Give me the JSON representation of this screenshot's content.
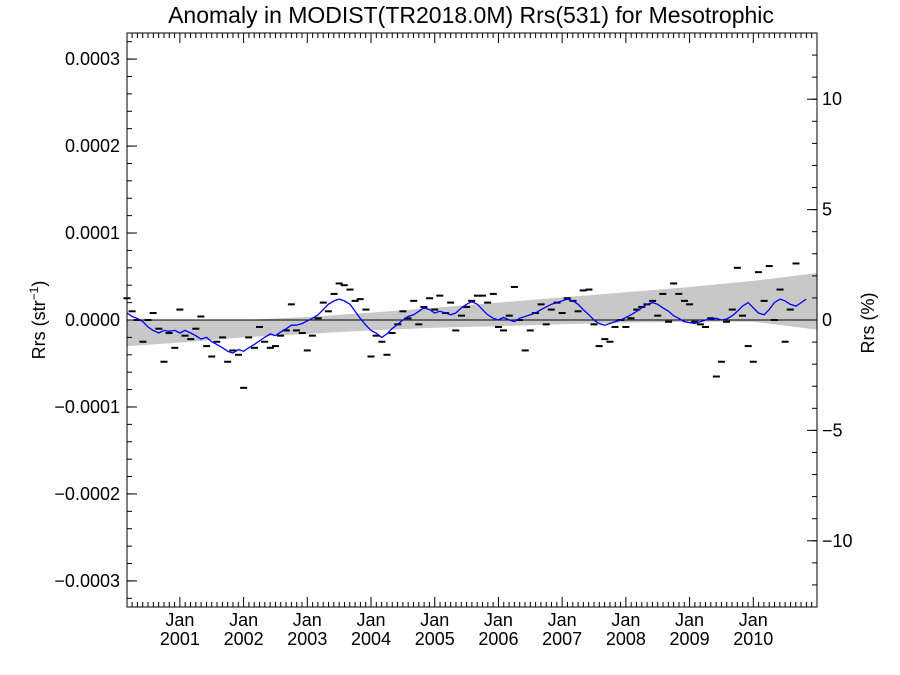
{
  "chart_data": {
    "type": "line",
    "title": "Anomaly in MODIST(TR2018.0M) Rrs(531) for Mesotrophic",
    "ylabel_left": {
      "text": "Rrs (str",
      "superscript": "−1",
      "suffix": ")"
    },
    "ylabel_right": "Rrs (%)",
    "xlim": [
      2000.17,
      2011.0
    ],
    "ylim_left": [
      -0.00033,
      0.00033
    ],
    "ylim_right": [
      -13.0,
      13.0
    ],
    "left_ticks": [
      {
        "value": 0.0003,
        "label": "0.0003"
      },
      {
        "value": 0.0002,
        "label": "0.0002"
      },
      {
        "value": 0.0001,
        "label": "0.0001"
      },
      {
        "value": 0.0,
        "label": "0.0000"
      },
      {
        "value": -0.0001,
        "label": "−0.0001"
      },
      {
        "value": -0.0002,
        "label": "−0.0002"
      },
      {
        "value": -0.0003,
        "label": "−0.0003"
      }
    ],
    "right_ticks": [
      {
        "value": 10,
        "label": "10"
      },
      {
        "value": 5,
        "label": "5"
      },
      {
        "value": 0,
        "label": "0"
      },
      {
        "value": -5,
        "label": "−5"
      },
      {
        "value": -10,
        "label": "−10"
      }
    ],
    "x_ticks": [
      {
        "value": 2001.0,
        "line1": "Jan",
        "line2": "2001"
      },
      {
        "value": 2002.0,
        "line1": "Jan",
        "line2": "2002"
      },
      {
        "value": 2003.0,
        "line1": "Jan",
        "line2": "2003"
      },
      {
        "value": 2004.0,
        "line1": "Jan",
        "line2": "2004"
      },
      {
        "value": 2005.0,
        "line1": "Jan",
        "line2": "2005"
      },
      {
        "value": 2006.0,
        "line1": "Jan",
        "line2": "2006"
      },
      {
        "value": 2007.0,
        "line1": "Jan",
        "line2": "2007"
      },
      {
        "value": 2008.0,
        "line1": "Jan",
        "line2": "2008"
      },
      {
        "value": 2009.0,
        "line1": "Jan",
        "line2": "2009"
      },
      {
        "value": 2010.0,
        "line1": "Jan",
        "line2": "2010"
      }
    ],
    "zero_line": 0.0,
    "confidence_band": {
      "x": [
        2000.17,
        2001.0,
        2002.0,
        2003.0,
        2004.0,
        2005.0,
        2006.0,
        2007.0,
        2008.0,
        2009.0,
        2010.0,
        2011.0
      ],
      "upper": [
        0.0,
        0.0,
        0.0,
        3.5e-06,
        8.5e-06,
        1.4e-05,
        2e-05,
        2.6e-05,
        3.2e-05,
        3.8e-05,
        4.5e-05,
        5.4e-05
      ],
      "lower": [
        -3e-05,
        -2.6e-05,
        -2e-05,
        -1.6e-05,
        -1.2e-05,
        -9e-06,
        -7e-06,
        -5e-06,
        -3e-06,
        -2e-06,
        -2e-06,
        -1.1e-05
      ]
    },
    "series": [
      {
        "values_role": "monthly anomaly markers",
        "color": "#000000",
        "points": [
          [
            2000.17,
            2.5e-05
          ],
          [
            2000.25,
            1e-05
          ],
          [
            2000.33,
            0.0
          ],
          [
            2000.42,
            -2.5e-05
          ],
          [
            2000.5,
            0.0
          ],
          [
            2000.58,
            8e-06
          ],
          [
            2000.67,
            -1e-05
          ],
          [
            2000.75,
            -4.8e-05
          ],
          [
            2000.83,
            -1.5e-05
          ],
          [
            2000.92,
            -3.2e-05
          ],
          [
            2001.0,
            1.2e-05
          ],
          [
            2001.08,
            -1.8e-05
          ],
          [
            2001.17,
            -2.2e-05
          ],
          [
            2001.25,
            -1e-05
          ],
          [
            2001.33,
            4e-06
          ],
          [
            2001.42,
            -3e-05
          ],
          [
            2001.5,
            -4.2e-05
          ],
          [
            2001.58,
            -2.5e-05
          ],
          [
            2001.67,
            -2e-05
          ],
          [
            2001.75,
            -4.8e-05
          ],
          [
            2001.83,
            -3.5e-05
          ],
          [
            2001.92,
            -4e-05
          ],
          [
            2002.0,
            -7.8e-05
          ],
          [
            2002.08,
            -2e-05
          ],
          [
            2002.17,
            -3.2e-05
          ],
          [
            2002.25,
            -8e-06
          ],
          [
            2002.33,
            -2.5e-05
          ],
          [
            2002.42,
            -3.2e-05
          ],
          [
            2002.5,
            -3e-05
          ],
          [
            2002.58,
            -1.8e-05
          ],
          [
            2002.67,
            -1.2e-05
          ],
          [
            2002.75,
            1.8e-05
          ],
          [
            2002.83,
            -1.2e-05
          ],
          [
            2002.92,
            -1.5e-05
          ],
          [
            2003.0,
            -3.5e-05
          ],
          [
            2003.08,
            -1.8e-05
          ],
          [
            2003.17,
            2e-06
          ],
          [
            2003.25,
            2e-05
          ],
          [
            2003.33,
            1e-05
          ],
          [
            2003.42,
            3e-05
          ],
          [
            2003.5,
            4.2e-05
          ],
          [
            2003.58,
            4e-05
          ],
          [
            2003.67,
            3.5e-05
          ],
          [
            2003.75,
            2.2e-05
          ],
          [
            2003.83,
            2.4e-05
          ],
          [
            2003.92,
            1.2e-05
          ],
          [
            2004.0,
            -4.2e-05
          ],
          [
            2004.08,
            -1.8e-05
          ],
          [
            2004.17,
            -2.5e-05
          ],
          [
            2004.25,
            -4e-05
          ],
          [
            2004.33,
            -1.5e-05
          ],
          [
            2004.42,
            -5e-06
          ],
          [
            2004.5,
            1e-05
          ],
          [
            2004.58,
            2e-06
          ],
          [
            2004.67,
            2.2e-05
          ],
          [
            2004.75,
            -5e-06
          ],
          [
            2004.83,
            1.5e-05
          ],
          [
            2004.92,
            2.5e-05
          ],
          [
            2005.0,
            1.2e-05
          ],
          [
            2005.08,
            2.8e-05
          ],
          [
            2005.17,
            8e-06
          ],
          [
            2005.25,
            2e-05
          ],
          [
            2005.33,
            -1.2e-05
          ],
          [
            2005.42,
            5e-06
          ],
          [
            2005.5,
            1.5e-05
          ],
          [
            2005.58,
            2.2e-05
          ],
          [
            2005.67,
            2.8e-05
          ],
          [
            2005.75,
            2.8e-05
          ],
          [
            2005.83,
            2e-05
          ],
          [
            2005.92,
            3e-05
          ],
          [
            2006.0,
            -8e-06
          ],
          [
            2006.08,
            -1.2e-05
          ],
          [
            2006.17,
            5e-06
          ],
          [
            2006.25,
            3.8e-05
          ],
          [
            2006.33,
            0.0
          ],
          [
            2006.42,
            -3.5e-05
          ],
          [
            2006.5,
            -1.2e-05
          ],
          [
            2006.58,
            8e-06
          ],
          [
            2006.67,
            1.8e-05
          ],
          [
            2006.75,
            -5e-06
          ],
          [
            2006.83,
            1.2e-05
          ],
          [
            2006.92,
            2e-05
          ],
          [
            2007.0,
            8e-06
          ],
          [
            2007.08,
            2.5e-05
          ],
          [
            2007.17,
            2.2e-05
          ],
          [
            2007.25,
            1e-05
          ],
          [
            2007.33,
            3.4e-05
          ],
          [
            2007.42,
            3.5e-05
          ],
          [
            2007.5,
            -5e-06
          ],
          [
            2007.58,
            -3e-05
          ],
          [
            2007.67,
            -2.2e-05
          ],
          [
            2007.75,
            -2.5e-05
          ],
          [
            2007.83,
            -8e-06
          ],
          [
            2007.92,
            0.0
          ],
          [
            2008.0,
            -8e-06
          ],
          [
            2008.08,
            2e-06
          ],
          [
            2008.17,
            1.2e-05
          ],
          [
            2008.25,
            1.5e-05
          ],
          [
            2008.33,
            1.8e-05
          ],
          [
            2008.42,
            2.2e-05
          ],
          [
            2008.5,
            5e-06
          ],
          [
            2008.58,
            3e-05
          ],
          [
            2008.67,
            -2e-06
          ],
          [
            2008.75,
            4.2e-05
          ],
          [
            2008.83,
            3e-05
          ],
          [
            2008.92,
            2.2e-05
          ],
          [
            2009.0,
            1.8e-05
          ],
          [
            2009.08,
            -2e-06
          ],
          [
            2009.17,
            -5e-06
          ],
          [
            2009.25,
            -8e-06
          ],
          [
            2009.33,
            2e-06
          ],
          [
            2009.42,
            -6.5e-05
          ],
          [
            2009.5,
            -4.8e-05
          ],
          [
            2009.58,
            -2e-06
          ],
          [
            2009.67,
            1.2e-05
          ],
          [
            2009.75,
            6e-05
          ],
          [
            2009.83,
            5e-06
          ],
          [
            2009.92,
            -3e-05
          ],
          [
            2010.0,
            -4.8e-05
          ],
          [
            2010.08,
            5.5e-05
          ],
          [
            2010.17,
            2.2e-05
          ],
          [
            2010.25,
            6.2e-05
          ],
          [
            2010.33,
            0.0
          ],
          [
            2010.42,
            3.5e-05
          ],
          [
            2010.5,
            -2.5e-05
          ],
          [
            2010.58,
            1.2e-05
          ],
          [
            2010.67,
            6.5e-05
          ]
        ]
      },
      {
        "values_role": "running mean",
        "color": "#0000ff",
        "points": [
          [
            2000.17,
            8e-06
          ],
          [
            2000.25,
            4e-06
          ],
          [
            2000.33,
            2e-06
          ],
          [
            2000.42,
            -2e-06
          ],
          [
            2000.5,
            -8e-06
          ],
          [
            2000.58,
            -1.2e-05
          ],
          [
            2000.67,
            -1.5e-05
          ],
          [
            2000.75,
            -1.2e-05
          ],
          [
            2000.83,
            -1.3e-05
          ],
          [
            2000.92,
            -1.2e-05
          ],
          [
            2001.0,
            -1.5e-05
          ],
          [
            2001.08,
            -1.2e-05
          ],
          [
            2001.17,
            -1.5e-05
          ],
          [
            2001.25,
            -1.8e-05
          ],
          [
            2001.33,
            -2.2e-05
          ],
          [
            2001.42,
            -2e-05
          ],
          [
            2001.5,
            -2.5e-05
          ],
          [
            2001.58,
            -2.8e-05
          ],
          [
            2001.67,
            -3.2e-05
          ],
          [
            2001.75,
            -3.6e-05
          ],
          [
            2001.83,
            -3.8e-05
          ],
          [
            2001.92,
            -3.4e-05
          ],
          [
            2002.0,
            -3.6e-05
          ],
          [
            2002.08,
            -3.2e-05
          ],
          [
            2002.17,
            -2.8e-05
          ],
          [
            2002.25,
            -2.4e-05
          ],
          [
            2002.33,
            -2e-05
          ],
          [
            2002.42,
            -1.6e-05
          ],
          [
            2002.5,
            -1.8e-05
          ],
          [
            2002.58,
            -1.4e-05
          ],
          [
            2002.67,
            -1e-05
          ],
          [
            2002.75,
            -6e-06
          ],
          [
            2002.83,
            -6e-06
          ],
          [
            2002.92,
            -4e-06
          ],
          [
            2003.0,
            -1e-06
          ],
          [
            2003.08,
            2e-06
          ],
          [
            2003.17,
            6e-06
          ],
          [
            2003.25,
            1.2e-05
          ],
          [
            2003.33,
            1.8e-05
          ],
          [
            2003.42,
            2.2e-05
          ],
          [
            2003.5,
            2.4e-05
          ],
          [
            2003.58,
            2.2e-05
          ],
          [
            2003.67,
            1.8e-05
          ],
          [
            2003.75,
            1e-05
          ],
          [
            2003.83,
            2e-06
          ],
          [
            2003.92,
            -6e-06
          ],
          [
            2004.0,
            -1.2e-05
          ],
          [
            2004.08,
            -1.5e-05
          ],
          [
            2004.17,
            -2e-05
          ],
          [
            2004.25,
            -1.6e-05
          ],
          [
            2004.33,
            -1e-05
          ],
          [
            2004.42,
            -5e-06
          ],
          [
            2004.5,
            0.0
          ],
          [
            2004.58,
            4e-06
          ],
          [
            2004.67,
            6e-06
          ],
          [
            2004.75,
            1e-05
          ],
          [
            2004.83,
            1.4e-05
          ],
          [
            2004.92,
            1.2e-05
          ],
          [
            2005.0,
            8e-06
          ],
          [
            2005.08,
            1e-05
          ],
          [
            2005.17,
            8e-06
          ],
          [
            2005.25,
            6e-06
          ],
          [
            2005.33,
            8e-06
          ],
          [
            2005.42,
            1.4e-05
          ],
          [
            2005.5,
            1.8e-05
          ],
          [
            2005.58,
            2.1e-05
          ],
          [
            2005.67,
            1.8e-05
          ],
          [
            2005.75,
            1.2e-05
          ],
          [
            2005.83,
            6e-06
          ],
          [
            2005.92,
            2e-06
          ],
          [
            2006.0,
            0.0
          ],
          [
            2006.08,
            3e-06
          ],
          [
            2006.17,
            0.0
          ],
          [
            2006.25,
            -2e-06
          ],
          [
            2006.33,
            2e-06
          ],
          [
            2006.42,
            4e-06
          ],
          [
            2006.5,
            6e-06
          ],
          [
            2006.58,
            8e-06
          ],
          [
            2006.67,
            1.2e-05
          ],
          [
            2006.75,
            1.5e-05
          ],
          [
            2006.83,
            1.8e-05
          ],
          [
            2006.92,
            2e-05
          ],
          [
            2007.0,
            2.2e-05
          ],
          [
            2007.08,
            2.4e-05
          ],
          [
            2007.17,
            2.2e-05
          ],
          [
            2007.25,
            1.8e-05
          ],
          [
            2007.33,
            1.2e-05
          ],
          [
            2007.42,
            6e-06
          ],
          [
            2007.5,
            0.0
          ],
          [
            2007.58,
            -4e-06
          ],
          [
            2007.67,
            -6e-06
          ],
          [
            2007.75,
            -4e-06
          ],
          [
            2007.83,
            -2e-06
          ],
          [
            2007.92,
            0.0
          ],
          [
            2008.0,
            3e-06
          ],
          [
            2008.08,
            6e-06
          ],
          [
            2008.17,
            1e-05
          ],
          [
            2008.25,
            1.4e-05
          ],
          [
            2008.33,
            1.8e-05
          ],
          [
            2008.42,
            2e-05
          ],
          [
            2008.5,
            1.8e-05
          ],
          [
            2008.58,
            1.4e-05
          ],
          [
            2008.67,
            1e-05
          ],
          [
            2008.75,
            5e-06
          ],
          [
            2008.83,
            2e-06
          ],
          [
            2008.92,
            -2e-06
          ],
          [
            2009.0,
            -3e-06
          ],
          [
            2009.08,
            -4e-06
          ],
          [
            2009.17,
            -2e-06
          ],
          [
            2009.25,
            0.0
          ],
          [
            2009.33,
            1e-06
          ],
          [
            2009.42,
            2e-06
          ],
          [
            2009.5,
            0.0
          ],
          [
            2009.58,
            1e-06
          ],
          [
            2009.67,
            5e-06
          ],
          [
            2009.75,
            1e-05
          ],
          [
            2009.83,
            1.6e-05
          ],
          [
            2009.92,
            2e-05
          ],
          [
            2010.0,
            1.4e-05
          ],
          [
            2010.08,
            8e-06
          ],
          [
            2010.17,
            6e-06
          ],
          [
            2010.25,
            1.2e-05
          ],
          [
            2010.33,
            2e-05
          ],
          [
            2010.42,
            2.4e-05
          ],
          [
            2010.5,
            2.2e-05
          ],
          [
            2010.58,
            1.8e-05
          ],
          [
            2010.67,
            1.6e-05
          ],
          [
            2010.75,
            2e-05
          ],
          [
            2010.83,
            2.4e-05
          ]
        ]
      }
    ]
  }
}
